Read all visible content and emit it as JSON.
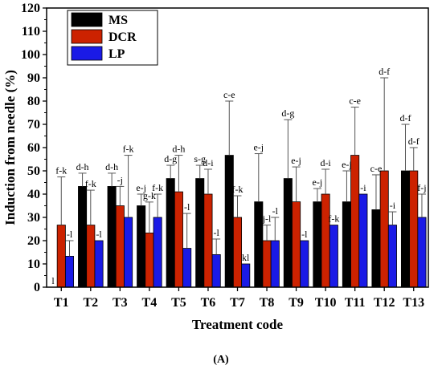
{
  "chart_data": {
    "type": "bar",
    "categories": [
      "T1",
      "T2",
      "T3",
      "T4",
      "T5",
      "T6",
      "T7",
      "T8",
      "T9",
      "T10",
      "T11",
      "T12",
      "T13"
    ],
    "series": [
      {
        "name": "MS",
        "color": "#000000",
        "values": [
          0,
          43.3,
          43.3,
          35,
          46.7,
          46.7,
          56.7,
          36.7,
          46.7,
          36.7,
          36.7,
          33.3,
          50
        ]
      },
      {
        "name": "DCR",
        "color": "#cc2200",
        "values": [
          26.7,
          26.7,
          35,
          23.3,
          41,
          40,
          30,
          20,
          36.7,
          40,
          56.7,
          50,
          50
        ]
      },
      {
        "name": "LP",
        "color": "#1a1ae6",
        "values": [
          13.3,
          20,
          30,
          30,
          16.7,
          14,
          10,
          20,
          20,
          26.7,
          40,
          26.7,
          30
        ]
      }
    ],
    "errors": [
      [
        0,
        5.7,
        5.7,
        5,
        5.7,
        5.7,
        23.3,
        20.7,
        25.3,
        5.7,
        13.3,
        15,
        20
      ],
      [
        20.7,
        15,
        8.3,
        13.3,
        15.7,
        10.7,
        9.3,
        6.7,
        15,
        10.7,
        20.7,
        40,
        10
      ],
      [
        6.7,
        0,
        26.7,
        10,
        15,
        6.7,
        0,
        10,
        0,
        0,
        0,
        5.7,
        10
      ]
    ],
    "annotations": [
      [
        "l",
        "d-h",
        "d-h",
        "e-j",
        "d-g",
        "s-g",
        "c-e",
        "e-j",
        "d-g",
        "e-j",
        "e-j",
        "c-e",
        "d-f"
      ],
      [
        "f-k",
        "f-k",
        "-j",
        "g-k",
        "d-h",
        "d-i",
        "f-k",
        "j-l",
        "e-j",
        "d-i",
        "c-e",
        "d-f",
        "d-f"
      ],
      [
        "-l",
        "-l",
        "f-k",
        "f-k",
        "-l",
        "-l",
        "kl",
        "-l",
        "-l",
        "f-k",
        "-i",
        "-i",
        "f-j"
      ]
    ],
    "xlabel": "Treatment code",
    "ylabel": "Induction from needle (%)",
    "ylim": [
      0,
      120
    ],
    "yticks": [
      0,
      10,
      20,
      30,
      40,
      50,
      60,
      70,
      80,
      90,
      100,
      110,
      120
    ],
    "legend_position": "top-left",
    "grid": false,
    "panel_label": "(A)"
  }
}
